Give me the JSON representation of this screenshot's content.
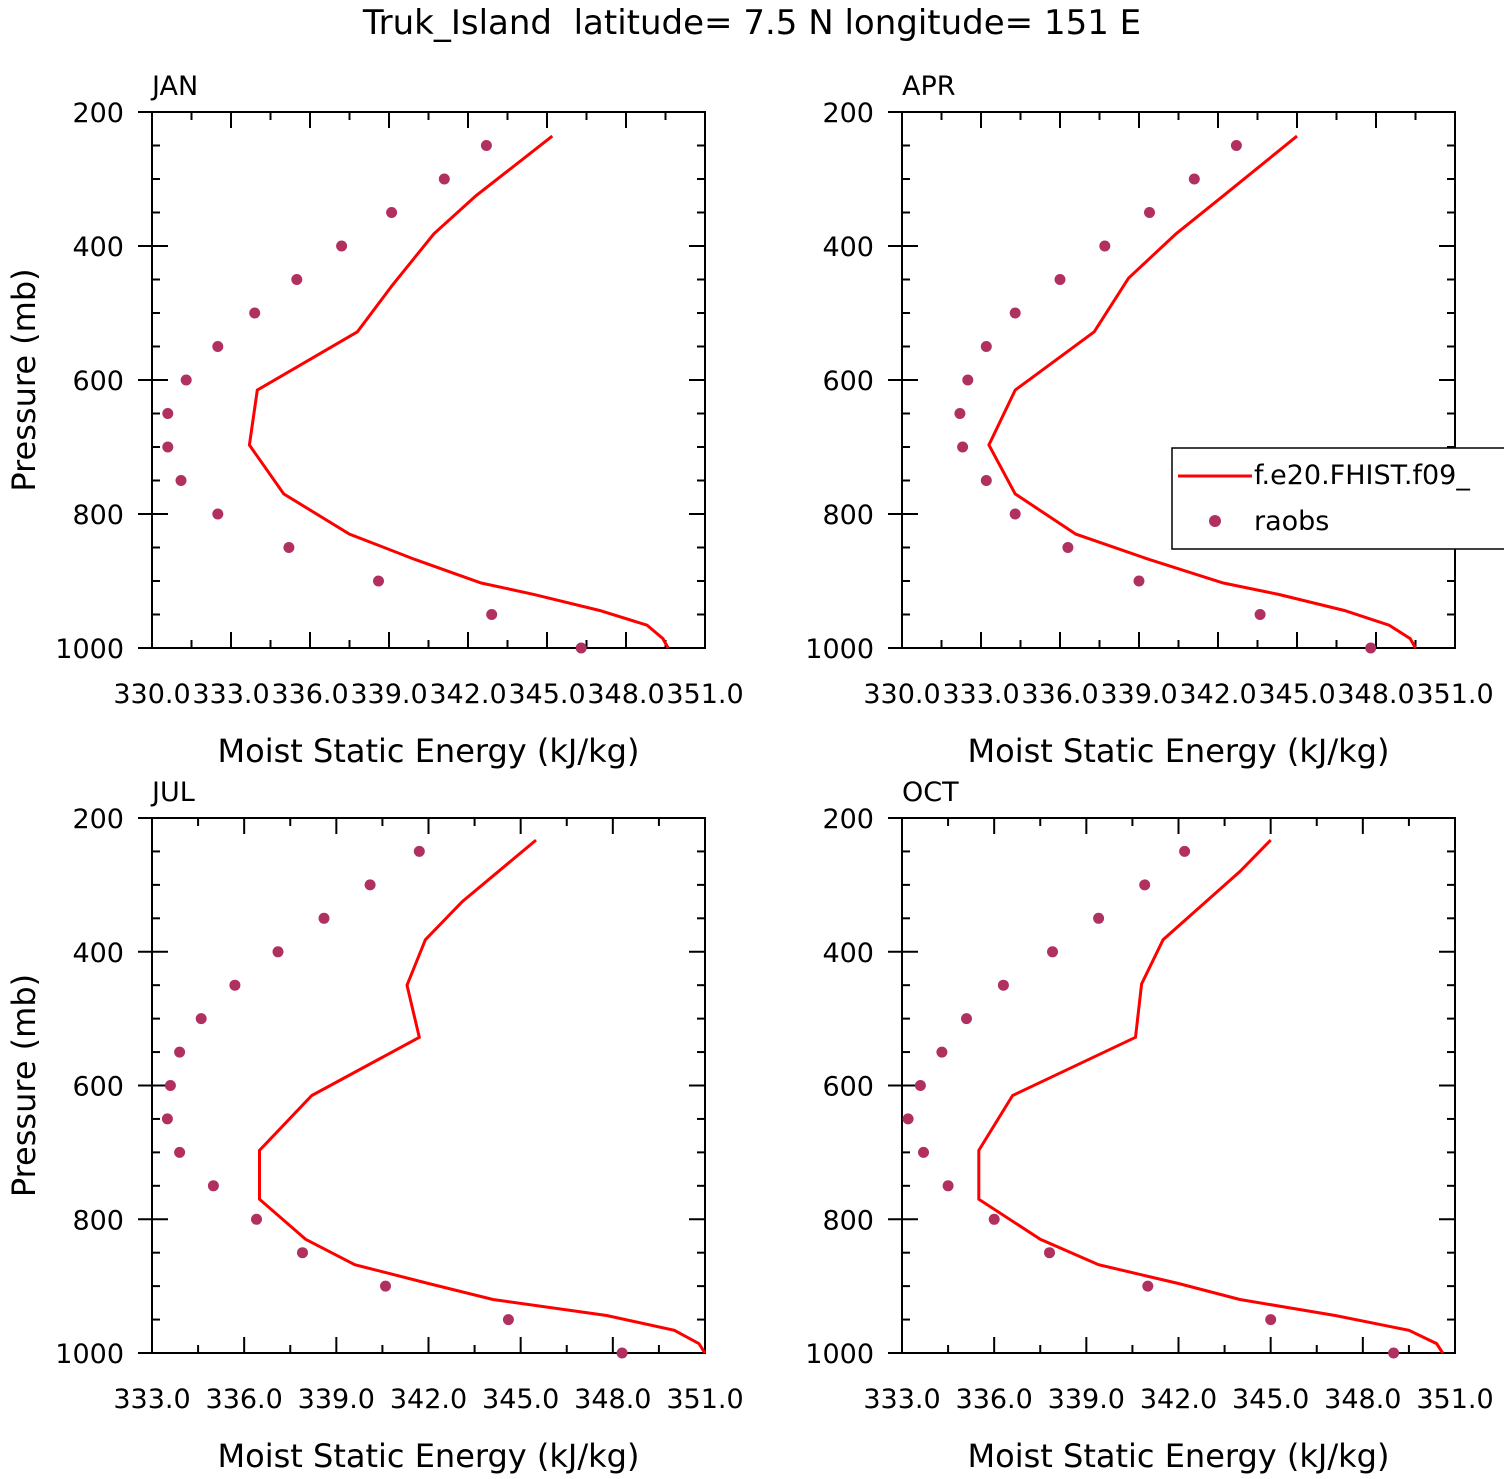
{
  "figure": {
    "title": "Truk_Island  latitude= 7.5 N longitude= 151 E"
  },
  "legend": {
    "model_label": "f.e20.FHIST.f09_",
    "obs_label": "raobs"
  },
  "colors": {
    "model_line": "#ff0000",
    "obs_marker": "#b03060",
    "axes": "#000000"
  },
  "chart_data": [
    {
      "type": "line",
      "title": "JAN",
      "xlabel": "Moist Static Energy (kJ/kg)",
      "ylabel": "Pressure (mb)",
      "xlim": [
        330.0,
        351.0
      ],
      "ylim": [
        1000,
        200
      ],
      "xticks": [
        330.0,
        333.0,
        336.0,
        339.0,
        342.0,
        345.0,
        348.0,
        351.0
      ],
      "xtick_labels": [
        "330.0",
        "333.0",
        "336.0",
        "339.0",
        "342.0",
        "345.0",
        "348.0",
        "351.0"
      ],
      "yticks": [
        200,
        400,
        600,
        800,
        1000
      ],
      "ytick_labels": [
        "200",
        "400",
        "600",
        "800",
        "1000"
      ],
      "legend": false,
      "series": [
        {
          "name": "f.e20.FHIST.f09_",
          "style": "line",
          "pressure": [
            236,
            325,
            382,
            460,
            528,
            615,
            697,
            770,
            830,
            868,
            903,
            920,
            944,
            966,
            986,
            1000
          ],
          "values": [
            345.2,
            342.3,
            340.7,
            339.1,
            337.8,
            334.0,
            333.7,
            335.0,
            337.5,
            340.0,
            342.5,
            344.5,
            347.0,
            348.8,
            349.4,
            349.6
          ]
        },
        {
          "name": "raobs",
          "style": "scatter",
          "pressure": [
            250,
            300,
            350,
            400,
            450,
            500,
            550,
            600,
            650,
            700,
            750,
            800,
            850,
            900,
            950,
            1000
          ],
          "values": [
            342.7,
            341.1,
            339.1,
            337.2,
            335.5,
            333.9,
            332.5,
            331.3,
            330.6,
            330.6,
            331.1,
            332.5,
            335.2,
            338.6,
            342.9,
            346.3
          ]
        }
      ]
    },
    {
      "type": "line",
      "title": "APR",
      "xlabel": "Moist Static Energy (kJ/kg)",
      "ylabel": "",
      "xlim": [
        330.0,
        351.0
      ],
      "ylim": [
        1000,
        200
      ],
      "xticks": [
        330.0,
        333.0,
        336.0,
        339.0,
        342.0,
        345.0,
        348.0,
        351.0
      ],
      "xtick_labels": [
        "330.0",
        "333.0",
        "336.0",
        "339.0",
        "342.0",
        "345.0",
        "348.0",
        "351.0"
      ],
      "yticks": [
        200,
        400,
        600,
        800,
        1000
      ],
      "ytick_labels": [
        "200",
        "400",
        "600",
        "800",
        "1000"
      ],
      "legend": true,
      "series": [
        {
          "name": "f.e20.FHIST.f09_",
          "style": "line",
          "pressure": [
            236,
            325,
            382,
            448,
            528,
            615,
            697,
            770,
            830,
            868,
            903,
            920,
            944,
            966,
            986,
            1000
          ],
          "values": [
            345.0,
            342.2,
            340.4,
            338.6,
            337.3,
            334.3,
            333.3,
            334.3,
            336.6,
            339.4,
            342.2,
            344.3,
            346.8,
            348.5,
            349.3,
            349.5
          ]
        },
        {
          "name": "raobs",
          "style": "scatter",
          "pressure": [
            250,
            300,
            350,
            400,
            450,
            500,
            550,
            600,
            650,
            700,
            750,
            800,
            850,
            900,
            950,
            1000
          ],
          "values": [
            342.7,
            341.1,
            339.4,
            337.7,
            336.0,
            334.3,
            333.2,
            332.5,
            332.2,
            332.3,
            333.2,
            334.3,
            336.3,
            339.0,
            343.6,
            347.8
          ]
        }
      ]
    },
    {
      "type": "line",
      "title": "JUL",
      "xlabel": "Moist Static Energy (kJ/kg)",
      "ylabel": "Pressure (mb)",
      "xlim": [
        333.0,
        351.0
      ],
      "ylim": [
        1000,
        200
      ],
      "xticks": [
        333.0,
        336.0,
        339.0,
        342.0,
        345.0,
        348.0,
        351.0
      ],
      "xtick_labels": [
        "333.0",
        "336.0",
        "339.0",
        "342.0",
        "345.0",
        "348.0",
        "351.0"
      ],
      "yticks": [
        200,
        400,
        600,
        800,
        1000
      ],
      "ytick_labels": [
        "200",
        "400",
        "600",
        "800",
        "1000"
      ],
      "legend": false,
      "series": [
        {
          "name": "f.e20.FHIST.f09_",
          "style": "line",
          "pressure": [
            233,
            325,
            382,
            450,
            528,
            615,
            697,
            770,
            830,
            868,
            896,
            920,
            944,
            966,
            986,
            1000
          ],
          "values": [
            345.5,
            343.1,
            341.9,
            341.3,
            341.7,
            338.2,
            336.5,
            336.5,
            338.0,
            339.6,
            342.0,
            344.1,
            347.8,
            350.0,
            350.8,
            351.0
          ]
        },
        {
          "name": "raobs",
          "style": "scatter",
          "pressure": [
            250,
            300,
            350,
            400,
            450,
            500,
            550,
            600,
            650,
            700,
            750,
            800,
            850,
            900,
            950,
            1000
          ],
          "values": [
            341.7,
            340.1,
            338.6,
            337.1,
            335.7,
            334.6,
            333.9,
            333.6,
            333.5,
            333.9,
            335.0,
            336.4,
            337.9,
            340.6,
            344.6,
            348.3
          ]
        }
      ]
    },
    {
      "type": "line",
      "title": "OCT",
      "xlabel": "Moist Static Energy (kJ/kg)",
      "ylabel": "",
      "xlim": [
        333.0,
        351.0
      ],
      "ylim": [
        1000,
        200
      ],
      "xticks": [
        333.0,
        336.0,
        339.0,
        342.0,
        345.0,
        348.0,
        351.0
      ],
      "xtick_labels": [
        "333.0",
        "336.0",
        "339.0",
        "342.0",
        "345.0",
        "348.0",
        "351.0"
      ],
      "yticks": [
        200,
        400,
        600,
        800,
        1000
      ],
      "ytick_labels": [
        "200",
        "400",
        "600",
        "800",
        "1000"
      ],
      "legend": false,
      "series": [
        {
          "name": "f.e20.FHIST.f09_",
          "style": "line",
          "pressure": [
            233,
            280,
            382,
            448,
            528,
            615,
            697,
            770,
            830,
            868,
            896,
            920,
            944,
            966,
            986,
            1000
          ],
          "values": [
            345.0,
            344.0,
            341.5,
            340.8,
            340.6,
            336.6,
            335.5,
            335.5,
            337.5,
            339.4,
            342.0,
            344.0,
            347.1,
            349.5,
            350.4,
            350.6
          ]
        },
        {
          "name": "raobs",
          "style": "scatter",
          "pressure": [
            250,
            300,
            350,
            400,
            450,
            500,
            550,
            600,
            650,
            700,
            750,
            800,
            850,
            900,
            950,
            1000
          ],
          "values": [
            342.2,
            340.9,
            339.4,
            337.9,
            336.3,
            335.1,
            334.3,
            333.6,
            333.2,
            333.7,
            334.5,
            336.0,
            337.8,
            341.0,
            345.0,
            349.0
          ]
        }
      ]
    }
  ]
}
